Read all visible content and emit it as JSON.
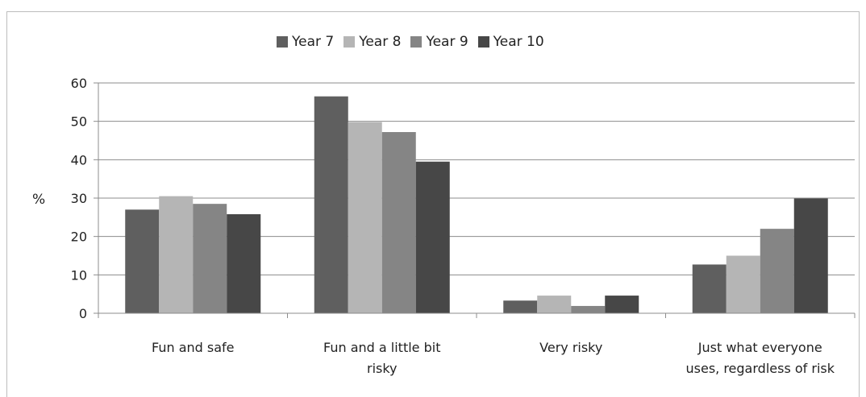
{
  "chart_data": {
    "type": "bar",
    "categories": [
      [
        "Fun and safe"
      ],
      [
        "Fun and a little bit",
        "risky"
      ],
      [
        "Very risky"
      ],
      [
        "Just what everyone",
        "uses, regardless of risk"
      ]
    ],
    "series": [
      {
        "name": "Year 7",
        "color": "#5f5f5f",
        "values": [
          27,
          56.5,
          3.3,
          12.7
        ]
      },
      {
        "name": "Year 8",
        "color": "#b5b5b5",
        "values": [
          30.5,
          49.8,
          4.6,
          15
        ]
      },
      {
        "name": "Year 9",
        "color": "#858585",
        "values": [
          28.5,
          47.2,
          1.9,
          22
        ]
      },
      {
        "name": "Year 10",
        "color": "#474747",
        "values": [
          25.8,
          39.5,
          4.6,
          29.9
        ]
      }
    ],
    "ylabel": "%",
    "ylim": [
      0,
      60
    ],
    "yticks": [
      0,
      10,
      20,
      30,
      40,
      50,
      60
    ],
    "grid": true,
    "legend": "top-center"
  }
}
